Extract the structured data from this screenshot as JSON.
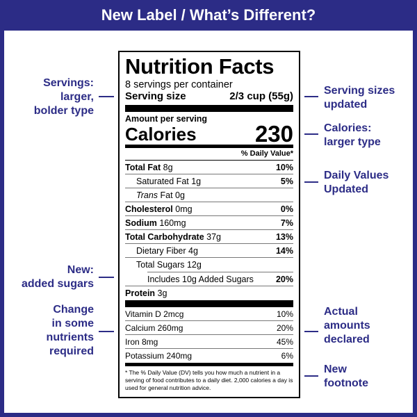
{
  "banner": {
    "title": "New Label / What’s Different?"
  },
  "notes_left": {
    "servings": [
      "Servings:",
      "larger,",
      "bolder type"
    ],
    "added_sugars": [
      "New:",
      "added sugars"
    ],
    "nutrients": [
      "Change",
      "in some",
      "nutrients",
      "required"
    ]
  },
  "notes_right": {
    "serving_sizes": [
      "Serving sizes",
      "updated"
    ],
    "calories": [
      "Calories:",
      "larger type"
    ],
    "daily_values": [
      "Daily Values",
      "Updated"
    ],
    "amounts": [
      "Actual",
      "amounts",
      "declared"
    ],
    "footnote": [
      "New",
      "footnote"
    ]
  },
  "label": {
    "title": "Nutrition Facts",
    "servings_per_container": "8 servings per container",
    "serving_size_label": "Serving size",
    "serving_size_value": "2/3 cup (55g)",
    "amount_per_serving": "Amount per serving",
    "calories_label": "Calories",
    "calories_value": "230",
    "dv_header": "% Daily Value*",
    "rows": {
      "total_fat": {
        "name": "Total Fat",
        "amount": "8g",
        "pct": "10%"
      },
      "sat_fat": {
        "name": "Saturated Fat",
        "amount": "1g",
        "pct": "5%"
      },
      "trans_fat": {
        "name": "Trans",
        "suffix": "Fat 0g"
      },
      "cholesterol": {
        "name": "Cholesterol",
        "amount": "0mg",
        "pct": "0%"
      },
      "sodium": {
        "name": "Sodium",
        "amount": "160mg",
        "pct": "7%"
      },
      "total_carb": {
        "name": "Total Carbohydrate",
        "amount": "37g",
        "pct": "13%"
      },
      "fiber": {
        "name": "Dietary Fiber 4g",
        "pct": "14%"
      },
      "total_sugars": {
        "name": "Total Sugars 12g"
      },
      "added_sugars": {
        "name": "Includes 10g Added Sugars",
        "pct": "20%"
      },
      "protein": {
        "name": "Protein",
        "amount": "3g"
      },
      "vitamin_d": {
        "name": "Vitamin D 2mcg",
        "pct": "10%"
      },
      "calcium": {
        "name": "Calcium 260mg",
        "pct": "20%"
      },
      "iron": {
        "name": "Iron 8mg",
        "pct": "45%"
      },
      "potassium": {
        "name": "Potassium 240mg",
        "pct": "6%"
      }
    },
    "footnote": "* The % Daily Value (DV) tells you how much a nutrient in a serving of food contributes to a daily diet. 2,000 calories a day is used for general nutrition advice."
  }
}
